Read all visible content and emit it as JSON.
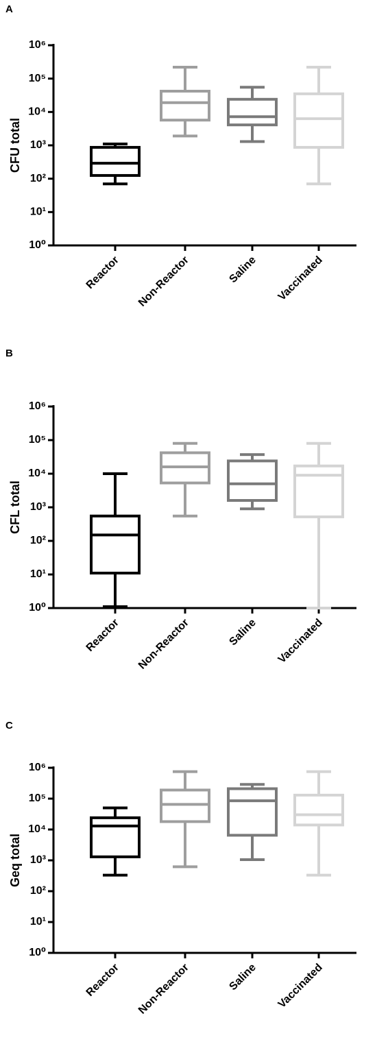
{
  "chart_data": [
    {
      "type": "box",
      "panel": "A",
      "ylabel": "CFU total",
      "log_scale": true,
      "categories": [
        "Reactor",
        "Non-Reactor",
        "Saline",
        "Vaccinated"
      ],
      "colors": [
        "#000000",
        "#9e9e9e",
        "#7a7a7a",
        "#d4d4d4"
      ],
      "boxes": [
        {
          "min": 70,
          "q1": 125,
          "median": 290,
          "q3": 870,
          "max": 1100
        },
        {
          "min": 1900,
          "q1": 5700,
          "median": 19000,
          "q3": 42000,
          "max": 220000
        },
        {
          "min": 1300,
          "q1": 4100,
          "median": 7200,
          "q3": 24000,
          "max": 55000
        },
        {
          "min": 70,
          "q1": 870,
          "median": 6300,
          "q3": 35000,
          "max": 220000
        }
      ],
      "ylim": [
        1,
        1000000
      ],
      "yticks": [
        {
          "value": 1,
          "label": "10⁰"
        },
        {
          "value": 10,
          "label": "10¹"
        },
        {
          "value": 100,
          "label": "10²"
        },
        {
          "value": 1000,
          "label": "10³"
        },
        {
          "value": 10000,
          "label": "10⁴"
        },
        {
          "value": 100000,
          "label": "10⁵"
        },
        {
          "value": 1000000,
          "label": "10⁶"
        }
      ]
    },
    {
      "type": "box",
      "panel": "B",
      "ylabel": "CFL total",
      "log_scale": true,
      "categories": [
        "Reactor",
        "Non-Reactor",
        "Saline",
        "Vaccinated"
      ],
      "colors": [
        "#000000",
        "#9e9e9e",
        "#7a7a7a",
        "#d4d4d4"
      ],
      "boxes": [
        {
          "min": 1.1,
          "q1": 11,
          "median": 150,
          "q3": 550,
          "max": 10000
        },
        {
          "min": 550,
          "q1": 5300,
          "median": 16000,
          "q3": 42000,
          "max": 80000
        },
        {
          "min": 900,
          "q1": 1600,
          "median": 5000,
          "q3": 24000,
          "max": 37000
        },
        {
          "min": 1,
          "q1": 520,
          "median": 9000,
          "q3": 17000,
          "max": 80000
        }
      ],
      "ylim": [
        1,
        1000000
      ],
      "yticks": [
        {
          "value": 1,
          "label": "10⁰"
        },
        {
          "value": 10,
          "label": "10¹"
        },
        {
          "value": 100,
          "label": "10²"
        },
        {
          "value": 1000,
          "label": "10³"
        },
        {
          "value": 10000,
          "label": "10⁴"
        },
        {
          "value": 100000,
          "label": "10⁵"
        },
        {
          "value": 1000000,
          "label": "10⁶"
        }
      ]
    },
    {
      "type": "box",
      "panel": "C",
      "ylabel": "Geq total",
      "log_scale": true,
      "categories": [
        "Reactor",
        "Non-Reactor",
        "Saline",
        "Vaccinated"
      ],
      "colors": [
        "#000000",
        "#9e9e9e",
        "#7a7a7a",
        "#d4d4d4"
      ],
      "boxes": [
        {
          "min": 330,
          "q1": 1300,
          "median": 13000,
          "q3": 24000,
          "max": 50000
        },
        {
          "min": 620,
          "q1": 18000,
          "median": 65000,
          "q3": 190000,
          "max": 750000
        },
        {
          "min": 1050,
          "q1": 6500,
          "median": 85000,
          "q3": 210000,
          "max": 290000
        },
        {
          "min": 330,
          "q1": 14000,
          "median": 30000,
          "q3": 130000,
          "max": 750000
        }
      ],
      "ylim": [
        1,
        1000000
      ],
      "yticks": [
        {
          "value": 1,
          "label": "10⁰"
        },
        {
          "value": 10,
          "label": "10¹"
        },
        {
          "value": 100,
          "label": "10²"
        },
        {
          "value": 1000,
          "label": "10³"
        },
        {
          "value": 10000,
          "label": "10⁴"
        },
        {
          "value": 100000,
          "label": "10⁵"
        },
        {
          "value": 1000000,
          "label": "10⁶"
        }
      ]
    }
  ]
}
